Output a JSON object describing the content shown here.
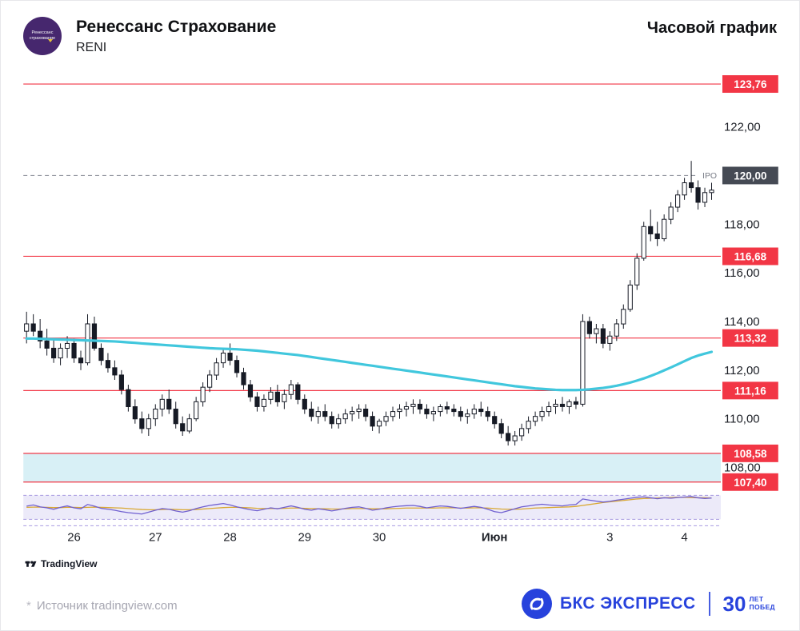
{
  "header": {
    "title": "Ренессанс Страхование",
    "ticker": "RENI",
    "timeframe_label": "Часовой график",
    "logo_text": "Ренессанс страхование",
    "logo_color": "#46276e"
  },
  "chart_data": {
    "type": "candlestick",
    "instrument": "RENI",
    "timeframe": "hourly",
    "ylim": [
      107.0,
      124.0
    ],
    "grid": false,
    "legend": false,
    "y_ticks": [
      {
        "value": 122.0,
        "label": "122,00"
      },
      {
        "value": 118.0,
        "label": "118,00"
      },
      {
        "value": 116.0,
        "label": "116,00"
      },
      {
        "value": 114.0,
        "label": "114,00"
      },
      {
        "value": 112.0,
        "label": "112,00"
      },
      {
        "value": 110.0,
        "label": "110,00"
      },
      {
        "value": 108.0,
        "label": "108,00"
      }
    ],
    "levels": [
      {
        "value": 123.76,
        "label": "123,76"
      },
      {
        "value": 116.68,
        "label": "116,68"
      },
      {
        "value": 113.32,
        "label": "113,32"
      },
      {
        "value": 111.16,
        "label": "111,16"
      },
      {
        "value": 108.58,
        "label": "108,58"
      },
      {
        "value": 107.4,
        "label": "107,40"
      }
    ],
    "current_price": {
      "value": 120.0,
      "label": "120,00",
      "note": "IPO"
    },
    "shaded_band": {
      "from": 107.4,
      "to": 108.58,
      "color": "#d8f0f6"
    },
    "x_labels": [
      {
        "label": "26",
        "i": 7
      },
      {
        "label": "27",
        "i": 19
      },
      {
        "label": "28",
        "i": 30
      },
      {
        "label": "29",
        "i": 41
      },
      {
        "label": "30",
        "i": 52
      },
      {
        "label": "Июн",
        "i": 69,
        "bold": true
      },
      {
        "label": "3",
        "i": 86
      },
      {
        "label": "4",
        "i": 97
      }
    ],
    "colors": {
      "level_line": "#f23645",
      "badge": "#f23645",
      "price_badge": "#454a54",
      "ma": "#41c7dd",
      "candle": "#161a25",
      "osc_purple": "#6f5fd0",
      "osc_yellow": "#d9a832",
      "osc_band": "#eceaf9",
      "osc_border": "#a79ae0"
    },
    "series": {
      "candles": [
        [
          113.6,
          114.4,
          113.1,
          113.9
        ],
        [
          113.9,
          114.3,
          113.4,
          113.6
        ],
        [
          113.6,
          114.1,
          112.9,
          113.2
        ],
        [
          113.2,
          113.7,
          112.6,
          112.9
        ],
        [
          112.9,
          113.3,
          112.3,
          112.5
        ],
        [
          112.5,
          113.1,
          112.2,
          112.9
        ],
        [
          112.9,
          113.4,
          112.5,
          113.1
        ],
        [
          113.1,
          113.3,
          112.3,
          112.5
        ],
        [
          112.5,
          112.8,
          112.0,
          112.3
        ],
        [
          112.3,
          114.3,
          112.2,
          113.9
        ],
        [
          113.9,
          114.2,
          112.8,
          112.9
        ],
        [
          112.9,
          113.1,
          112.2,
          112.4
        ],
        [
          112.4,
          112.7,
          111.9,
          112.1
        ],
        [
          112.1,
          112.4,
          111.6,
          111.8
        ],
        [
          111.8,
          112.0,
          111.0,
          111.2
        ],
        [
          111.2,
          111.4,
          110.3,
          110.5
        ],
        [
          110.5,
          110.8,
          109.8,
          110.0
        ],
        [
          110.0,
          110.3,
          109.4,
          109.6
        ],
        [
          109.6,
          110.2,
          109.3,
          110.0
        ],
        [
          110.0,
          110.6,
          109.7,
          110.4
        ],
        [
          110.4,
          111.0,
          110.1,
          110.8
        ],
        [
          110.8,
          111.2,
          110.2,
          110.4
        ],
        [
          110.4,
          110.7,
          109.6,
          109.8
        ],
        [
          109.8,
          110.1,
          109.3,
          109.5
        ],
        [
          109.5,
          110.2,
          109.4,
          110.0
        ],
        [
          110.0,
          110.9,
          109.9,
          110.7
        ],
        [
          110.7,
          111.5,
          110.5,
          111.3
        ],
        [
          111.3,
          112.0,
          111.1,
          111.8
        ],
        [
          111.8,
          112.5,
          111.6,
          112.3
        ],
        [
          112.3,
          112.9,
          112.1,
          112.7
        ],
        [
          112.7,
          113.1,
          112.2,
          112.4
        ],
        [
          112.4,
          112.6,
          111.7,
          111.9
        ],
        [
          111.9,
          112.1,
          111.2,
          111.4
        ],
        [
          111.4,
          111.6,
          110.7,
          110.9
        ],
        [
          110.9,
          111.1,
          110.3,
          110.5
        ],
        [
          110.5,
          111.0,
          110.3,
          110.8
        ],
        [
          110.8,
          111.3,
          110.6,
          111.1
        ],
        [
          111.1,
          111.4,
          110.5,
          110.7
        ],
        [
          110.7,
          111.2,
          110.4,
          111.0
        ],
        [
          111.0,
          111.6,
          110.8,
          111.4
        ],
        [
          111.4,
          111.5,
          110.6,
          110.8
        ],
        [
          110.8,
          111.0,
          110.2,
          110.4
        ],
        [
          110.4,
          110.7,
          109.9,
          110.1
        ],
        [
          110.1,
          110.5,
          109.8,
          110.3
        ],
        [
          110.3,
          110.6,
          109.9,
          110.1
        ],
        [
          110.1,
          110.3,
          109.6,
          109.8
        ],
        [
          109.8,
          110.2,
          109.6,
          110.0
        ],
        [
          110.0,
          110.4,
          109.8,
          110.2
        ],
        [
          110.2,
          110.5,
          109.9,
          110.3
        ],
        [
          110.3,
          110.6,
          110.0,
          110.4
        ],
        [
          110.4,
          110.6,
          109.9,
          110.1
        ],
        [
          110.1,
          110.3,
          109.5,
          109.7
        ],
        [
          109.7,
          110.0,
          109.4,
          109.9
        ],
        [
          109.9,
          110.3,
          109.7,
          110.1
        ],
        [
          110.1,
          110.5,
          109.9,
          110.3
        ],
        [
          110.3,
          110.6,
          110.0,
          110.4
        ],
        [
          110.4,
          110.7,
          110.1,
          110.5
        ],
        [
          110.5,
          110.8,
          110.2,
          110.6
        ],
        [
          110.6,
          110.8,
          110.2,
          110.4
        ],
        [
          110.4,
          110.6,
          110.0,
          110.2
        ],
        [
          110.2,
          110.5,
          109.9,
          110.3
        ],
        [
          110.3,
          110.6,
          110.1,
          110.5
        ],
        [
          110.5,
          110.7,
          110.2,
          110.4
        ],
        [
          110.4,
          110.6,
          110.1,
          110.3
        ],
        [
          110.3,
          110.5,
          109.9,
          110.1
        ],
        [
          110.1,
          110.4,
          109.8,
          110.2
        ],
        [
          110.2,
          110.6,
          110.0,
          110.4
        ],
        [
          110.4,
          110.7,
          110.1,
          110.3
        ],
        [
          110.3,
          110.5,
          109.9,
          110.1
        ],
        [
          110.1,
          110.3,
          109.6,
          109.8
        ],
        [
          109.8,
          110.0,
          109.2,
          109.4
        ],
        [
          109.4,
          109.7,
          108.9,
          109.1
        ],
        [
          109.1,
          109.5,
          108.9,
          109.3
        ],
        [
          109.3,
          109.8,
          109.1,
          109.6
        ],
        [
          109.6,
          110.1,
          109.4,
          109.9
        ],
        [
          109.9,
          110.3,
          109.7,
          110.1
        ],
        [
          110.1,
          110.5,
          109.9,
          110.3
        ],
        [
          110.3,
          110.7,
          110.1,
          110.5
        ],
        [
          110.5,
          110.8,
          110.2,
          110.6
        ],
        [
          110.6,
          110.9,
          110.3,
          110.5
        ],
        [
          110.5,
          110.8,
          110.2,
          110.7
        ],
        [
          110.7,
          110.9,
          110.4,
          110.6
        ],
        [
          110.6,
          114.3,
          110.5,
          114.0
        ],
        [
          114.0,
          114.2,
          113.3,
          113.5
        ],
        [
          113.5,
          113.9,
          113.1,
          113.7
        ],
        [
          113.7,
          113.9,
          112.9,
          113.1
        ],
        [
          113.1,
          113.6,
          112.8,
          113.4
        ],
        [
          113.4,
          114.1,
          113.2,
          113.9
        ],
        [
          113.9,
          114.7,
          113.7,
          114.5
        ],
        [
          114.5,
          115.7,
          114.4,
          115.5
        ],
        [
          115.5,
          116.8,
          115.3,
          116.6
        ],
        [
          116.6,
          118.1,
          116.5,
          117.9
        ],
        [
          117.9,
          118.6,
          117.3,
          117.6
        ],
        [
          117.6,
          118.1,
          117.1,
          117.4
        ],
        [
          117.4,
          118.4,
          117.3,
          118.2
        ],
        [
          118.2,
          118.9,
          118.0,
          118.7
        ],
        [
          118.7,
          119.4,
          118.5,
          119.2
        ],
        [
          119.2,
          119.9,
          119.0,
          119.7
        ],
        [
          119.7,
          120.6,
          119.3,
          119.5
        ],
        [
          119.5,
          119.8,
          118.6,
          118.9
        ],
        [
          118.9,
          119.5,
          118.7,
          119.3
        ],
        [
          119.3,
          119.7,
          119.0,
          119.4
        ]
      ],
      "ma": [
        113.3,
        113.3,
        113.29,
        113.28,
        113.27,
        113.26,
        113.25,
        113.24,
        113.23,
        113.22,
        113.21,
        113.2,
        113.19,
        113.18,
        113.16,
        113.14,
        113.12,
        113.1,
        113.08,
        113.06,
        113.04,
        113.02,
        113.0,
        112.98,
        112.96,
        112.94,
        112.92,
        112.9,
        112.89,
        112.88,
        112.87,
        112.86,
        112.84,
        112.82,
        112.8,
        112.77,
        112.74,
        112.71,
        112.68,
        112.65,
        112.62,
        112.58,
        112.54,
        112.5,
        112.46,
        112.42,
        112.38,
        112.34,
        112.3,
        112.26,
        112.22,
        112.18,
        112.14,
        112.1,
        112.06,
        112.02,
        111.98,
        111.94,
        111.9,
        111.86,
        111.82,
        111.78,
        111.74,
        111.7,
        111.66,
        111.62,
        111.58,
        111.54,
        111.5,
        111.46,
        111.42,
        111.38,
        111.34,
        111.31,
        111.28,
        111.25,
        111.23,
        111.21,
        111.19,
        111.18,
        111.18,
        111.18,
        111.19,
        111.21,
        111.24,
        111.27,
        111.31,
        111.36,
        111.42,
        111.49,
        111.57,
        111.66,
        111.76,
        111.87,
        111.99,
        112.11,
        112.24,
        112.37,
        112.5,
        112.6,
        112.68,
        112.75
      ],
      "oscillator": {
        "purple": [
          0.55,
          0.6,
          0.52,
          0.48,
          0.42,
          0.5,
          0.56,
          0.48,
          0.44,
          0.62,
          0.55,
          0.46,
          0.42,
          0.38,
          0.32,
          0.28,
          0.25,
          0.22,
          0.3,
          0.38,
          0.45,
          0.42,
          0.35,
          0.3,
          0.36,
          0.45,
          0.52,
          0.58,
          0.62,
          0.66,
          0.6,
          0.52,
          0.46,
          0.4,
          0.36,
          0.42,
          0.48,
          0.44,
          0.5,
          0.56,
          0.5,
          0.42,
          0.38,
          0.44,
          0.4,
          0.35,
          0.4,
          0.46,
          0.5,
          0.52,
          0.46,
          0.38,
          0.42,
          0.48,
          0.52,
          0.55,
          0.57,
          0.58,
          0.54,
          0.48,
          0.52,
          0.56,
          0.54,
          0.5,
          0.46,
          0.5,
          0.54,
          0.5,
          0.42,
          0.32,
          0.28,
          0.36,
          0.44,
          0.52,
          0.56,
          0.6,
          0.63,
          0.6,
          0.58,
          0.56,
          0.6,
          0.62,
          0.85,
          0.8,
          0.76,
          0.72,
          0.75,
          0.8,
          0.84,
          0.88,
          0.92,
          0.94,
          0.9,
          0.86,
          0.9,
          0.88,
          0.91,
          0.93,
          0.95,
          0.9,
          0.87,
          0.89
        ],
        "yellow": [
          0.5,
          0.51,
          0.51,
          0.5,
          0.49,
          0.49,
          0.5,
          0.5,
          0.49,
          0.5,
          0.51,
          0.5,
          0.49,
          0.48,
          0.47,
          0.45,
          0.43,
          0.41,
          0.4,
          0.4,
          0.41,
          0.42,
          0.41,
          0.4,
          0.4,
          0.41,
          0.43,
          0.45,
          0.47,
          0.49,
          0.5,
          0.5,
          0.49,
          0.48,
          0.46,
          0.45,
          0.45,
          0.45,
          0.46,
          0.47,
          0.47,
          0.46,
          0.45,
          0.44,
          0.44,
          0.43,
          0.43,
          0.44,
          0.45,
          0.45,
          0.45,
          0.44,
          0.44,
          0.44,
          0.45,
          0.46,
          0.47,
          0.47,
          0.47,
          0.47,
          0.47,
          0.48,
          0.48,
          0.48,
          0.47,
          0.47,
          0.48,
          0.48,
          0.47,
          0.45,
          0.43,
          0.42,
          0.42,
          0.43,
          0.45,
          0.47,
          0.48,
          0.49,
          0.5,
          0.51,
          0.52,
          0.54,
          0.58,
          0.62,
          0.66,
          0.7,
          0.73,
          0.76,
          0.79,
          0.82,
          0.85,
          0.87,
          0.88,
          0.89,
          0.9,
          0.91,
          0.92,
          0.92,
          0.91,
          0.9,
          0.9,
          0.89
        ]
      }
    }
  },
  "attribution": {
    "tradingview": "TradingView"
  },
  "footer": {
    "source_star": "*",
    "source_text": "Источник tradingview.com",
    "brand_name": "БКС ЭКСПРЕСС",
    "brand_color": "#2742dc",
    "anniversary_number": "30",
    "anniversary_top": "ЛЕТ",
    "anniversary_bottom": "ПОБЕД"
  }
}
